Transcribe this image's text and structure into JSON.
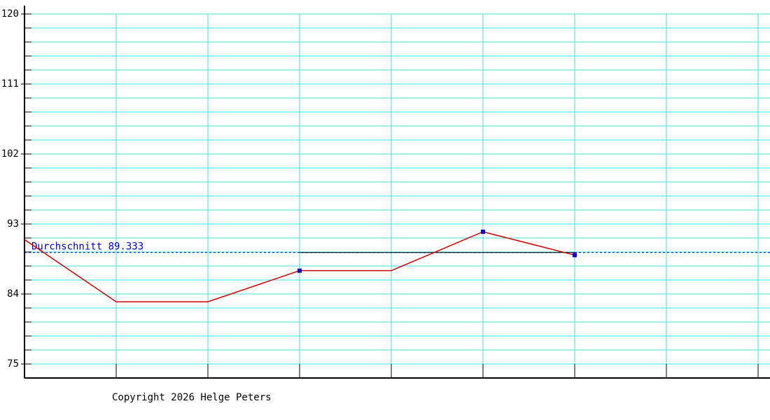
{
  "chart_data": {
    "type": "line",
    "categories": [
      null,
      null,
      null,
      null,
      null,
      null,
      null,
      null,
      null
    ],
    "series": [
      {
        "color": "#cc0000",
        "values": [
          91,
          83,
          83,
          87,
          87,
          92,
          89,
          null,
          null
        ]
      },
      {
        "color": "#0000cc",
        "values": [
          null,
          null,
          null,
          87,
          null,
          92,
          89,
          null,
          null
        ],
        "points_only": true
      }
    ],
    "ylim": [
      73.2,
      121.08
    ],
    "yticks": [
      75,
      84,
      93,
      102,
      111,
      120
    ],
    "y_minor_ticks": [
      76.8,
      78.6,
      80.4,
      82.2,
      85.8,
      87.6,
      89.4,
      91.2,
      94.8,
      96.6,
      98.4,
      100.2,
      103.8,
      105.6,
      107.4,
      109.2,
      112.8,
      114.6,
      116.4,
      118.2
    ],
    "grid": true,
    "grid_color": "#40e0e0",
    "average": 89.333,
    "average_label": "Durchschnitt 89.333",
    "average_color": "#0000cc",
    "footer": "Copyright 2026 Helge Peters"
  }
}
